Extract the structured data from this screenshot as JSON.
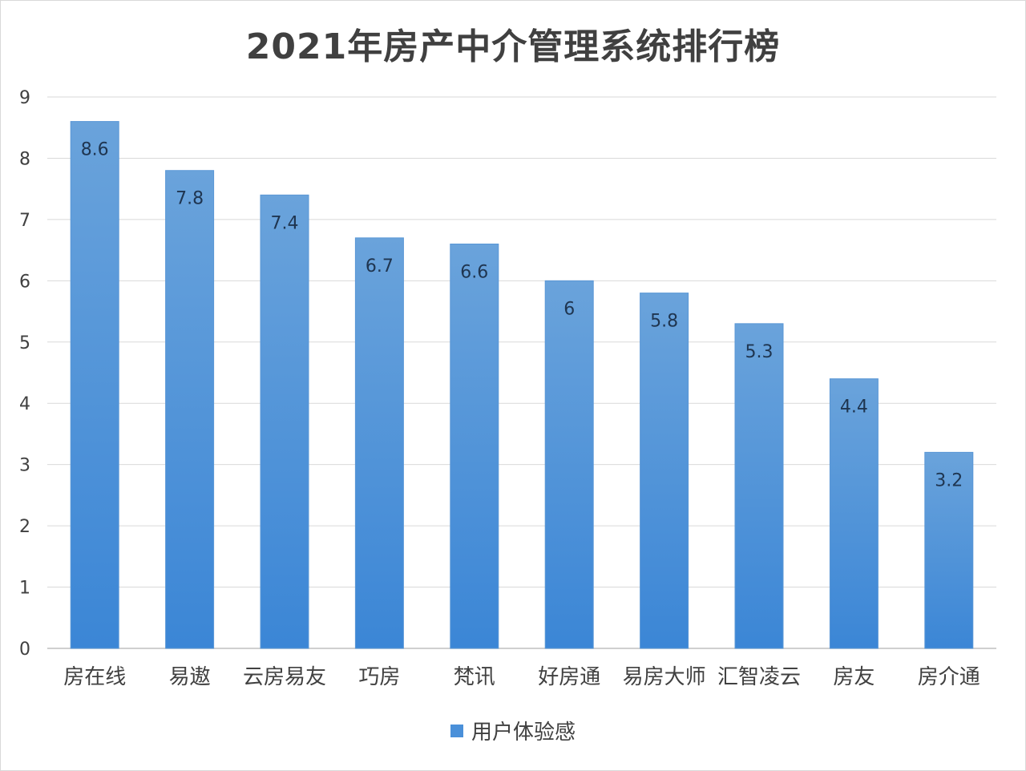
{
  "chart_data": {
    "type": "bar",
    "title": "2021年房产中介管理系统排行榜",
    "categories": [
      "房在线",
      "易遨",
      "云房易友",
      "巧房",
      "梵讯",
      "好房通",
      "易房大师",
      "汇智凌云",
      "房友",
      "房介通"
    ],
    "series": [
      {
        "name": "用户体验感",
        "values": [
          8.6,
          7.8,
          7.4,
          6.7,
          6.6,
          6,
          5.8,
          5.3,
          4.4,
          3.2
        ]
      }
    ],
    "data_labels": [
      "8.6",
      "7.8",
      "7.4",
      "6.7",
      "6.6",
      "6",
      "5.8",
      "5.3",
      "4.4",
      "3.2"
    ],
    "y_ticks": [
      "0",
      "1",
      "2",
      "3",
      "4",
      "5",
      "6",
      "7",
      "8",
      "9"
    ],
    "ylim": [
      0,
      9
    ],
    "grid": true,
    "legend_position": "bottom",
    "xlabel": "",
    "ylabel": "",
    "colors": {
      "bar_top": "#6aa3db",
      "bar_bottom": "#3b86d6",
      "legend_swatch": "#4a90d9",
      "gridline": "#d9d9d9",
      "axis": "#bfbfbf",
      "text": "#404040"
    }
  }
}
